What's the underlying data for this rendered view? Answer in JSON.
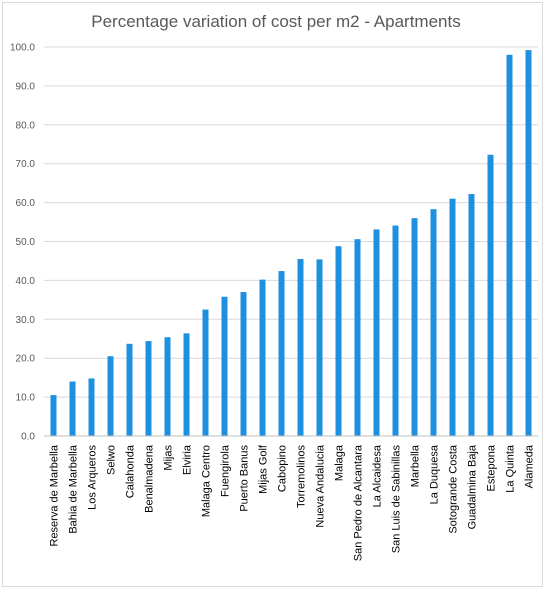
{
  "chart_data": {
    "type": "bar",
    "title": "Percentage variation of cost per m2 - Apartments",
    "xlabel": "",
    "ylabel": "",
    "ylim": [
      0,
      100
    ],
    "yticks": [
      "0.0",
      "10.0",
      "20.0",
      "30.0",
      "40.0",
      "50.0",
      "60.0",
      "70.0",
      "80.0",
      "90.0",
      "100.0"
    ],
    "grid": true,
    "legend": "none",
    "bar_color": "#1f8fe0",
    "categories": [
      "Reserva de Marbella",
      "Bahia de Marbella",
      "Los Arqueros",
      "Selwo",
      "Calahonda",
      "Benalmadena",
      "Mijas",
      "Elviria",
      "Malaga Centro",
      "Fuengirola",
      "Puerto Banus",
      "Mijas Golf",
      "Cabopino",
      "Torremolinos",
      "Nueva Andalucia",
      "Malaga",
      "San Pedro de Alcantara",
      "La Alcaidesa",
      "San Luis de Sabinillas",
      "Marbella",
      "La Duquesa",
      "Sotogrande Costa",
      "Guadalmina Baja",
      "Estepona",
      "La Quinta",
      "Alameda"
    ],
    "values": [
      10.5,
      14.0,
      14.8,
      20.5,
      23.7,
      24.4,
      25.4,
      26.4,
      32.5,
      35.8,
      37.0,
      40.2,
      42.4,
      45.5,
      45.4,
      48.8,
      50.6,
      53.1,
      54.1,
      56.0,
      58.3,
      61.0,
      62.2,
      72.3,
      98.0,
      99.2
    ]
  }
}
